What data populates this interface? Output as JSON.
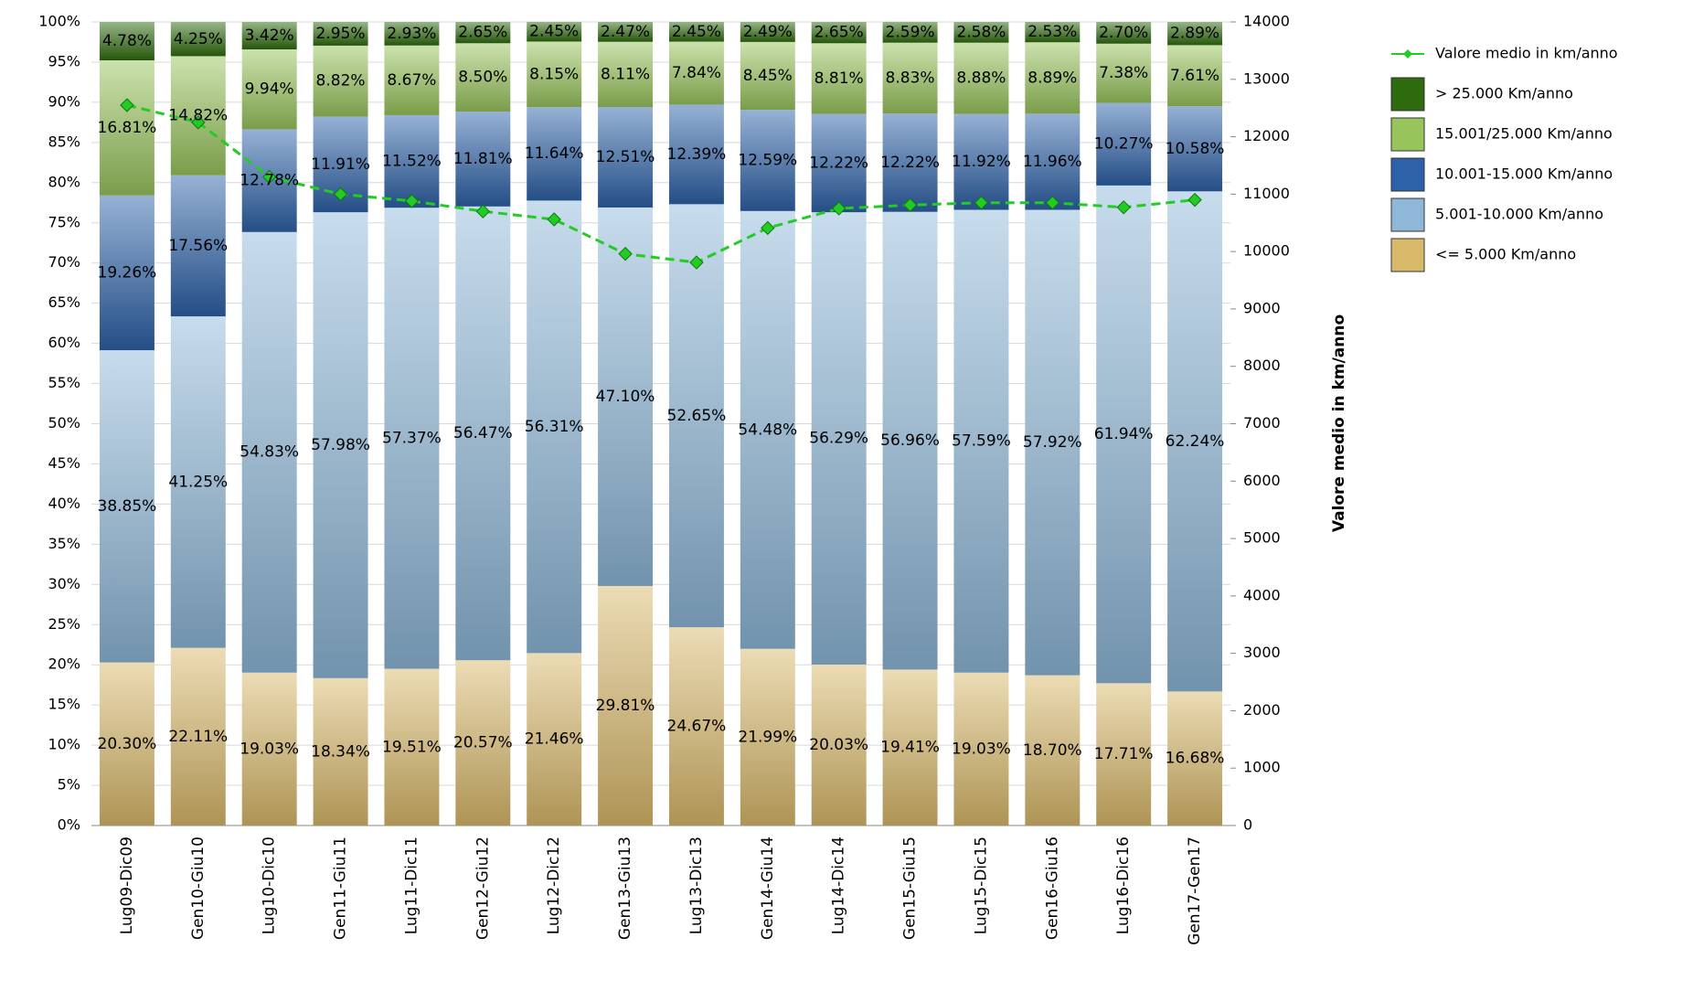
{
  "chart_data": {
    "type": "stacked-bar-line",
    "categories": [
      "Lug09-Dic09",
      "Gen10-Giu10",
      "Lug10-Dic10",
      "Gen11-Giu11",
      "Lug11-Dic11",
      "Gen12-Giu12",
      "Lug12-Dic12",
      "Gen13-Giu13",
      "Lug13-Dic13",
      "Gen14-Giu14",
      "Lug14-Dic14",
      "Gen15-Giu15",
      "Lug15-Dic15",
      "Gen16-Giu16",
      "Lug16-Dic16",
      "Gen17-Gen17"
    ],
    "series": [
      {
        "name": "<= 5.000 Km/anno",
        "color": "#d9b96a",
        "values": [
          20.3,
          22.11,
          19.03,
          18.34,
          19.51,
          20.57,
          21.46,
          29.81,
          24.67,
          21.99,
          20.03,
          19.41,
          19.03,
          18.7,
          17.71,
          16.68
        ],
        "value_labels": [
          "20.30%",
          "22.11%",
          "19.03%",
          "18.34%",
          "19.51%",
          "20.57%",
          "21.46%",
          "29.81%",
          "24.67%",
          "21.99%",
          "20.03%",
          "19.41%",
          "19.03%",
          "18.70%",
          "17.71%",
          "16.68%"
        ]
      },
      {
        "name": "5.001-10.000 Km/anno",
        "color": "#8fb8d8",
        "values": [
          38.85,
          41.25,
          54.83,
          57.98,
          57.37,
          56.47,
          56.31,
          47.1,
          52.65,
          54.48,
          56.29,
          56.96,
          57.59,
          57.92,
          61.94,
          62.24
        ],
        "value_labels": [
          "38.85%",
          "41.25%",
          "54.83%",
          "57.98%",
          "57.37%",
          "56.47%",
          "56.31%",
          "47.10%",
          "52.65%",
          "54.48%",
          "56.29%",
          "56.96%",
          "57.59%",
          "57.92%",
          "61.94%",
          "62.24%"
        ]
      },
      {
        "name": "10.001-15.000 Km/anno",
        "color": "#2d62a8",
        "values": [
          19.26,
          17.56,
          12.78,
          11.91,
          11.52,
          11.81,
          11.64,
          12.51,
          12.39,
          12.59,
          12.22,
          12.22,
          11.92,
          11.96,
          10.27,
          10.58
        ],
        "value_labels": [
          "19.26%",
          "17.56%",
          "12.78%",
          "11.91%",
          "11.52%",
          "11.81%",
          "11.64%",
          "12.51%",
          "12.39%",
          "12.59%",
          "12.22%",
          "12.22%",
          "11.92%",
          "11.96%",
          "10.27%",
          "10.58%"
        ]
      },
      {
        "name": "15.001/25.000 Km/anno",
        "color": "#98c45c",
        "values": [
          16.81,
          14.82,
          9.94,
          8.82,
          8.67,
          8.5,
          8.15,
          8.11,
          7.84,
          8.45,
          8.81,
          8.83,
          8.88,
          8.89,
          7.38,
          7.61
        ],
        "value_labels": [
          "16.81%",
          "14.82%",
          "9.94%",
          "8.82%",
          "8.67%",
          "8.50%",
          "8.15%",
          "8.11%",
          "7.84%",
          "8.45%",
          "8.81%",
          "8.83%",
          "8.88%",
          "8.89%",
          "7.38%",
          "7.61%"
        ]
      },
      {
        "name": "> 25.000 Km/anno",
        "color": "#2e6b0e",
        "values": [
          4.78,
          4.25,
          3.42,
          2.95,
          2.93,
          2.65,
          2.45,
          2.47,
          2.45,
          2.49,
          2.65,
          2.59,
          2.58,
          2.53,
          2.7,
          2.89
        ],
        "value_labels": [
          "4.78%",
          "4.25%",
          "3.42%",
          "2.95%",
          "2.93%",
          "2.65%",
          "2.45%",
          "2.47%",
          "2.45%",
          "2.49%",
          "2.65%",
          "2.59%",
          "2.58%",
          "2.53%",
          "2.70%",
          "2.89%"
        ]
      },
      {
        "name": "Valore medio in km/anno",
        "color": "#22cc22",
        "type": "line",
        "axis": "y2",
        "values": [
          12550,
          12250,
          11300,
          11000,
          10880,
          10700,
          10560,
          9960,
          9810,
          10410,
          10750,
          10810,
          10850,
          10850,
          10770,
          10900
        ]
      }
    ],
    "ylim": [
      0,
      100
    ],
    "yticks": [
      {
        "value": 0,
        "label": "0%"
      },
      {
        "value": 5,
        "label": "5%"
      },
      {
        "value": 10,
        "label": "10%"
      },
      {
        "value": 15,
        "label": "15%"
      },
      {
        "value": 20,
        "label": "20%"
      },
      {
        "value": 25,
        "label": "25%"
      },
      {
        "value": 30,
        "label": "30%"
      },
      {
        "value": 35,
        "label": "35%"
      },
      {
        "value": 40,
        "label": "40%"
      },
      {
        "value": 45,
        "label": "45%"
      },
      {
        "value": 50,
        "label": "50%"
      },
      {
        "value": 55,
        "label": "55%"
      },
      {
        "value": 60,
        "label": "60%"
      },
      {
        "value": 65,
        "label": "65%"
      },
      {
        "value": 70,
        "label": "70%"
      },
      {
        "value": 75,
        "label": "75%"
      },
      {
        "value": 80,
        "label": "80%"
      },
      {
        "value": 85,
        "label": "85%"
      },
      {
        "value": 90,
        "label": "90%"
      },
      {
        "value": 95,
        "label": "95%"
      },
      {
        "value": 100,
        "label": "100%"
      }
    ],
    "y2label": "Valore medio in km/anno",
    "y2lim": [
      0,
      14000
    ],
    "y2ticks": [
      0,
      1000,
      2000,
      3000,
      4000,
      5000,
      6000,
      7000,
      8000,
      9000,
      10000,
      11000,
      12000,
      13000,
      14000
    ],
    "grid": true,
    "legend": "right"
  }
}
